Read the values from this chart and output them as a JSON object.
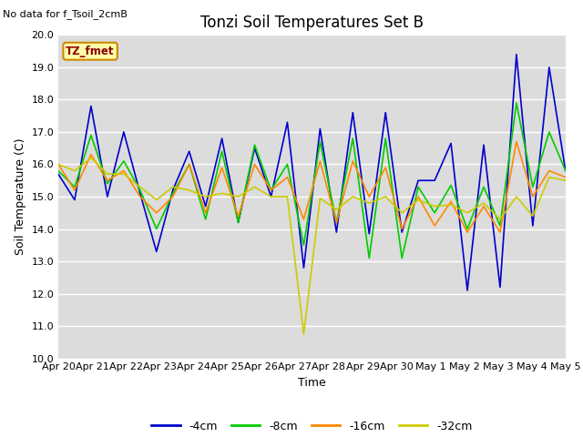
{
  "title": "Tonzi Soil Temperatures Set B",
  "xlabel": "Time",
  "ylabel": "Soil Temperature (C)",
  "note": "No data for f_Tsoil_2cmB",
  "annotation": "TZ_fmet",
  "ylim": [
    10.0,
    20.0
  ],
  "yticks": [
    10.0,
    11.0,
    12.0,
    13.0,
    14.0,
    15.0,
    16.0,
    17.0,
    18.0,
    19.0,
    20.0
  ],
  "xtick_labels": [
    "Apr 20",
    "Apr 21",
    "Apr 22",
    "Apr 23",
    "Apr 24",
    "Apr 25",
    "Apr 26",
    "Apr 27",
    "Apr 28",
    "Apr 29",
    "Apr 30",
    "May 1",
    "May 2",
    "May 3",
    "May 4",
    "May 5"
  ],
  "series": {
    "4cm": {
      "color": "#0000cc",
      "label": "-4cm",
      "lw": 1.2,
      "y": [
        15.7,
        14.9,
        17.8,
        15.0,
        17.0,
        15.1,
        13.3,
        15.2,
        16.4,
        14.7,
        16.8,
        14.2,
        16.5,
        15.0,
        17.3,
        12.8,
        17.1,
        13.9,
        17.6,
        13.85,
        17.6,
        13.9,
        15.5,
        15.5,
        16.65,
        12.1,
        16.6,
        12.2,
        19.4,
        14.1,
        19.0,
        15.8
      ]
    },
    "8cm": {
      "color": "#00cc00",
      "label": "-8cm",
      "lw": 1.2,
      "y": [
        15.8,
        15.3,
        16.9,
        15.4,
        16.1,
        15.2,
        14.0,
        15.1,
        16.0,
        14.3,
        16.4,
        14.2,
        16.6,
        15.2,
        16.0,
        13.5,
        16.7,
        14.2,
        16.8,
        13.1,
        16.8,
        13.1,
        15.3,
        14.5,
        15.35,
        14.0,
        15.3,
        14.1,
        17.9,
        15.3,
        17.0,
        15.8
      ]
    },
    "16cm": {
      "color": "#ff8800",
      "label": "-16cm",
      "lw": 1.2,
      "y": [
        16.0,
        15.2,
        16.3,
        15.5,
        15.8,
        15.0,
        14.5,
        15.0,
        16.0,
        14.5,
        15.9,
        14.4,
        16.0,
        15.2,
        15.6,
        14.3,
        16.1,
        14.2,
        16.1,
        15.0,
        15.9,
        14.0,
        15.0,
        14.1,
        14.85,
        13.9,
        14.7,
        13.9,
        16.7,
        15.0,
        15.8,
        15.6
      ]
    },
    "32cm": {
      "color": "#cccc00",
      "label": "-32cm",
      "lw": 1.2,
      "y": [
        16.0,
        15.8,
        16.2,
        15.7,
        15.7,
        15.3,
        14.9,
        15.3,
        15.2,
        15.0,
        15.1,
        15.0,
        15.3,
        15.0,
        15.0,
        10.75,
        14.95,
        14.6,
        15.0,
        14.8,
        15.0,
        14.5,
        14.9,
        14.7,
        14.75,
        14.5,
        14.8,
        14.3,
        15.0,
        14.4,
        15.6,
        15.5
      ]
    }
  },
  "bg_color": "#dcdcdc",
  "grid_color": "#ffffff",
  "fig_width": 6.4,
  "fig_height": 4.8,
  "title_fontsize": 12,
  "label_fontsize": 9,
  "tick_fontsize": 8,
  "note_fontsize": 8
}
